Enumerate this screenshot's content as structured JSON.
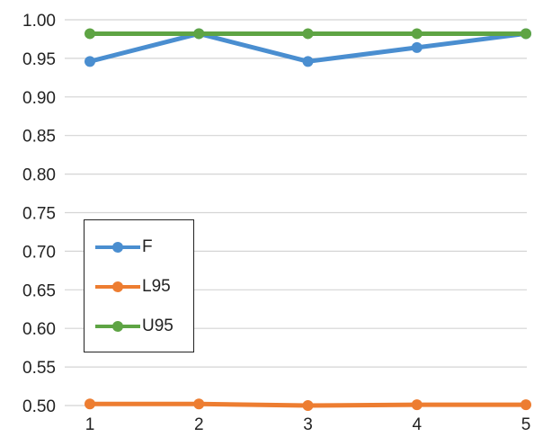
{
  "chart_data": {
    "type": "line",
    "x": [
      1,
      2,
      3,
      4,
      5
    ],
    "ylim": [
      0.5,
      1.0
    ],
    "yticks": [
      "0.50",
      "0.55",
      "0.60",
      "0.65",
      "0.70",
      "0.75",
      "0.80",
      "0.85",
      "0.90",
      "0.95",
      "1.00"
    ],
    "xticks": [
      "1",
      "2",
      "3",
      "4",
      "5"
    ],
    "grid": true,
    "legend_position": "center-left",
    "series": [
      {
        "name": "F",
        "color": "#4a8ed0",
        "values": [
          0.946,
          0.982,
          0.946,
          0.964,
          0.982
        ]
      },
      {
        "name": "L95",
        "color": "#ed7d31",
        "values": [
          0.502,
          0.502,
          0.5,
          0.501,
          0.501
        ]
      },
      {
        "name": "U95",
        "color": "#5ea444",
        "values": [
          0.982,
          0.982,
          0.982,
          0.982,
          0.982
        ]
      }
    ]
  }
}
